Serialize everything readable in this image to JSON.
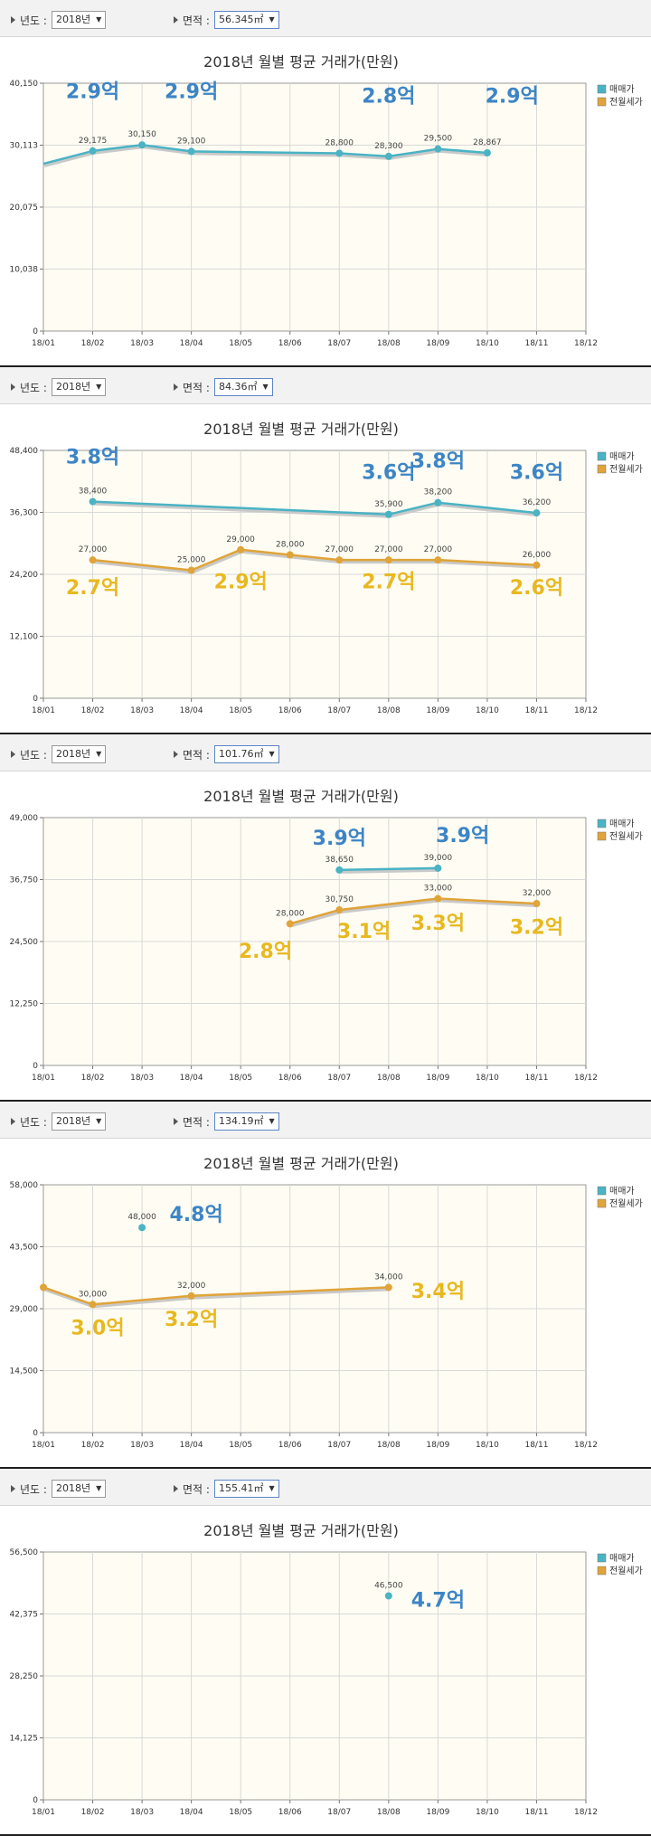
{
  "toolbar": {
    "year_label": "년도 :",
    "area_label": "면적 :"
  },
  "chart_data": [
    {
      "type": "line",
      "year_value": "2018년",
      "area_value": "56.345㎡",
      "title": "2018년 월별 평균 거래가(만원)",
      "categories": [
        "18/01",
        "18/02",
        "18/03",
        "18/04",
        "18/05",
        "18/06",
        "18/07",
        "18/08",
        "18/09",
        "18/10",
        "18/11",
        "18/12"
      ],
      "y_ticks": [
        "0",
        "10,038",
        "20,075",
        "30,113",
        "40,150"
      ],
      "ylim": [
        0,
        40150
      ],
      "legend": [
        "매매가",
        "전월세가"
      ],
      "series": [
        {
          "name": "매매가",
          "color": "#4ab3c4",
          "label_color": "#3d85c6",
          "points": [
            {
              "i": 0,
              "v": 27100,
              "label": "",
              "marker": false
            },
            {
              "i": 1,
              "v": 29175,
              "label": "29,175"
            },
            {
              "i": 2,
              "v": 30150,
              "label": "30,150"
            },
            {
              "i": 3,
              "v": 29100,
              "label": "29,100"
            },
            {
              "i": 6,
              "v": 28800,
              "label": "28,800"
            },
            {
              "i": 7,
              "v": 28300,
              "label": "28,300"
            },
            {
              "i": 8,
              "v": 29500,
              "label": "29,500"
            },
            {
              "i": 9,
              "v": 28867,
              "label": "28,867"
            }
          ]
        }
      ],
      "annotations": [
        {
          "text": "2.9억",
          "i": 1,
          "v": 37700,
          "color": "#3d85c6"
        },
        {
          "text": "2.9억",
          "i": 3,
          "v": 37700,
          "color": "#3d85c6"
        },
        {
          "text": "2.8억",
          "i": 7,
          "v": 37000,
          "color": "#3d85c6"
        },
        {
          "text": "2.9억",
          "i": 9.5,
          "v": 37000,
          "color": "#3d85c6"
        }
      ]
    },
    {
      "type": "line",
      "year_value": "2018년",
      "area_value": "84.36㎡",
      "title": "2018년 월별 평균 거래가(만원)",
      "categories": [
        "18/01",
        "18/02",
        "18/03",
        "18/04",
        "18/05",
        "18/06",
        "18/07",
        "18/08",
        "18/09",
        "18/10",
        "18/11",
        "18/12"
      ],
      "y_ticks": [
        "0",
        "12,100",
        "24,200",
        "36,300",
        "48,400"
      ],
      "ylim": [
        0,
        48400
      ],
      "legend": [
        "매매가",
        "전월세가"
      ],
      "series": [
        {
          "name": "매매가",
          "color": "#4ab3c4",
          "points": [
            {
              "i": 1,
              "v": 38400,
              "label": "38,400"
            },
            {
              "i": 7,
              "v": 35900,
              "label": "35,900"
            },
            {
              "i": 8,
              "v": 38200,
              "label": "38,200"
            },
            {
              "i": 10,
              "v": 36200,
              "label": "36,200"
            }
          ]
        },
        {
          "name": "전월세가",
          "color": "#e0a43a",
          "points": [
            {
              "i": 1,
              "v": 27000,
              "label": "27,000"
            },
            {
              "i": 3,
              "v": 25000,
              "label": "25,000"
            },
            {
              "i": 4,
              "v": 29000,
              "label": "29,000"
            },
            {
              "i": 5,
              "v": 28000,
              "label": "28,000"
            },
            {
              "i": 6,
              "v": 27000,
              "label": "27,000"
            },
            {
              "i": 7,
              "v": 27000,
              "label": "27,000"
            },
            {
              "i": 8,
              "v": 27000,
              "label": "27,000"
            },
            {
              "i": 10,
              "v": 26000,
              "label": "26,000"
            }
          ]
        }
      ],
      "annotations": [
        {
          "text": "3.8억",
          "i": 1,
          "v": 45800,
          "color": "#3d85c6"
        },
        {
          "text": "3.6억",
          "i": 7,
          "v": 42800,
          "color": "#3d85c6"
        },
        {
          "text": "3.8억",
          "i": 8,
          "v": 45000,
          "color": "#3d85c6"
        },
        {
          "text": "3.6억",
          "i": 10,
          "v": 42800,
          "color": "#3d85c6"
        },
        {
          "text": "2.7억",
          "i": 1,
          "v": 20300,
          "color": "#e8b820"
        },
        {
          "text": "2.9억",
          "i": 4,
          "v": 21500,
          "color": "#e8b820"
        },
        {
          "text": "2.7억",
          "i": 7,
          "v": 21500,
          "color": "#e8b820"
        },
        {
          "text": "2.6억",
          "i": 10,
          "v": 20300,
          "color": "#e8b820"
        }
      ]
    },
    {
      "type": "line",
      "year_value": "2018년",
      "area_value": "101.76㎡",
      "title": "2018년 월별 평균 거래가(만원)",
      "categories": [
        "18/01",
        "18/02",
        "18/03",
        "18/04",
        "18/05",
        "18/06",
        "18/07",
        "18/08",
        "18/09",
        "18/10",
        "18/11",
        "18/12"
      ],
      "y_ticks": [
        "0",
        "12,250",
        "24,500",
        "36,750",
        "49,000"
      ],
      "ylim": [
        0,
        49000
      ],
      "legend": [
        "매매가",
        "전월세가"
      ],
      "series": [
        {
          "name": "매매가",
          "color": "#4ab3c4",
          "points": [
            {
              "i": 6,
              "v": 38650,
              "label": "38,650"
            },
            {
              "i": 8,
              "v": 39000,
              "label": "39,000"
            }
          ]
        },
        {
          "name": "전월세가",
          "color": "#e0a43a",
          "points": [
            {
              "i": 5,
              "v": 28000,
              "label": "28,000"
            },
            {
              "i": 6,
              "v": 30750,
              "label": "30,750"
            },
            {
              "i": 8,
              "v": 33000,
              "label": "33,000"
            },
            {
              "i": 10,
              "v": 32000,
              "label": "32,000"
            }
          ]
        }
      ],
      "annotations": [
        {
          "text": "3.9억",
          "i": 6,
          "v": 43600,
          "color": "#3d85c6"
        },
        {
          "text": "3.9억",
          "i": 8.5,
          "v": 44200,
          "color": "#3d85c6"
        },
        {
          "text": "2.8억",
          "i": 4.5,
          "v": 21300,
          "color": "#e8b820"
        },
        {
          "text": "3.1억",
          "i": 6.5,
          "v": 25200,
          "color": "#e8b820"
        },
        {
          "text": "3.3억",
          "i": 8,
          "v": 26800,
          "color": "#e8b820"
        },
        {
          "text": "3.2억",
          "i": 10,
          "v": 26000,
          "color": "#e8b820"
        }
      ]
    },
    {
      "type": "line",
      "year_value": "2018년",
      "area_value": "134.19㎡",
      "title": "2018년 월별 평균 거래가(만원)",
      "categories": [
        "18/01",
        "18/02",
        "18/03",
        "18/04",
        "18/05",
        "18/06",
        "18/07",
        "18/08",
        "18/09",
        "18/10",
        "18/11",
        "18/12"
      ],
      "y_ticks": [
        "0",
        "14,500",
        "29,000",
        "43,500",
        "58,000"
      ],
      "ylim": [
        0,
        58000
      ],
      "legend": [
        "매매가",
        "전월세가"
      ],
      "series": [
        {
          "name": "매매가",
          "color": "#4ab3c4",
          "points": [
            {
              "i": 2,
              "v": 48000,
              "label": "48,000"
            }
          ]
        },
        {
          "name": "전월세가",
          "color": "#e0a43a",
          "points": [
            {
              "i": 0,
              "v": 34000,
              "label": ""
            },
            {
              "i": 1,
              "v": 30000,
              "label": "30,000"
            },
            {
              "i": 3,
              "v": 32000,
              "label": "32,000"
            },
            {
              "i": 7,
              "v": 34000,
              "label": "34,000"
            }
          ]
        }
      ],
      "annotations": [
        {
          "text": "4.8억",
          "i": 3.1,
          "v": 49500,
          "color": "#3d85c6"
        },
        {
          "text": "3.0억",
          "i": 1.1,
          "v": 23000,
          "color": "#e8b820"
        },
        {
          "text": "3.2억",
          "i": 3,
          "v": 25000,
          "color": "#e8b820"
        },
        {
          "text": "3.4억",
          "i": 8.0,
          "v": 31500,
          "color": "#e8b820"
        }
      ]
    },
    {
      "type": "scatter",
      "year_value": "2018년",
      "area_value": "155.41㎡",
      "title": "2018년 월별 평균 거래가(만원)",
      "categories": [
        "18/01",
        "18/02",
        "18/03",
        "18/04",
        "18/05",
        "18/06",
        "18/07",
        "18/08",
        "18/09",
        "18/10",
        "18/11",
        "18/12"
      ],
      "y_ticks": [
        "0",
        "14,125",
        "28,250",
        "42,375",
        "56,500"
      ],
      "ylim": [
        0,
        56500
      ],
      "legend": [
        "매매가",
        "전월세가"
      ],
      "series": [
        {
          "name": "매매가",
          "color": "#4ab3c4",
          "points": [
            {
              "i": 7,
              "v": 46500,
              "label": "46,500"
            }
          ]
        }
      ],
      "annotations": [
        {
          "text": "4.7억",
          "i": 8.0,
          "v": 44000,
          "color": "#3d85c6"
        }
      ]
    }
  ]
}
